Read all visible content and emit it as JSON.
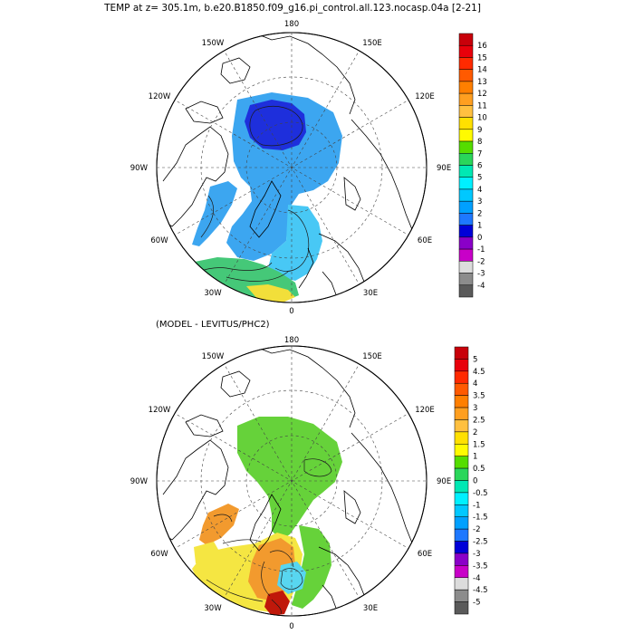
{
  "figure": {
    "main_title": "TEMP at z= 305.1m, b.e20.B1850.f09_g16.pi_control.all.123.nocasp.04a [2-21]",
    "diff_title": "(MODEL - LEVITUS/PHC2)"
  },
  "longitude_labels": {
    "top": "180",
    "bottom": "0",
    "left": "90W",
    "right": "90E",
    "upper_left_150": "150W",
    "upper_left_120": "120W",
    "upper_right_150": "150E",
    "upper_right_120": "120E",
    "lower_left_60": "60W",
    "lower_left_30": "30W",
    "lower_right_60": "60E",
    "lower_right_30": "30E"
  },
  "colorbar_top": {
    "labels": [
      "16",
      "15",
      "14",
      "13",
      "12",
      "11",
      "10",
      "9",
      "8",
      "7",
      "6",
      "5",
      "4",
      "3",
      "2",
      "1",
      "0",
      "-1",
      "-2",
      "-3",
      "-4"
    ],
    "colors": [
      "#c8000a",
      "#e8000b",
      "#ff2a00",
      "#ff5a00",
      "#ff7f00",
      "#ff9f20",
      "#ffc040",
      "#ffe000",
      "#fffb00",
      "#55dd00",
      "#2ad65a",
      "#00e8b4",
      "#00f0ff",
      "#00c8ff",
      "#00a0ff",
      "#1e78ff",
      "#0000d8",
      "#8a00c8",
      "#c800c8",
      "#dcdcdc",
      "#8c8c8c",
      "#5a5a5a"
    ]
  },
  "colorbar_bottom": {
    "labels": [
      "5",
      "4.5",
      "4",
      "3.5",
      "3",
      "2.5",
      "2",
      "1.5",
      "1",
      "0.5",
      "0",
      "-0.5",
      "-1",
      "-1.5",
      "-2",
      "-2.5",
      "-3",
      "-3.5",
      "-4",
      "-4.5",
      "-5"
    ],
    "colors": [
      "#c8000a",
      "#e8000b",
      "#ff2a00",
      "#ff5a00",
      "#ff7f00",
      "#ff9f20",
      "#ffc040",
      "#ffe000",
      "#fffb00",
      "#55dd00",
      "#2ad65a",
      "#00e8b4",
      "#00f0ff",
      "#00c8ff",
      "#00a0ff",
      "#1e78ff",
      "#0000d8",
      "#8a00c8",
      "#c800c8",
      "#dcdcdc",
      "#8c8c8c",
      "#5a5a5a"
    ]
  },
  "field_colors": {
    "top_deep_blue": "#1e2fdc",
    "top_light_blue": "#3ca6f0",
    "top_cyan": "#48c8f5",
    "top_green": "#45c878",
    "top_yellow": "#f2df3a",
    "diff_green": "#66d23a",
    "diff_yellow": "#f5e642",
    "diff_orange": "#f29a2e",
    "diff_cyan": "#58d6f0",
    "diff_red": "#c0180a"
  }
}
